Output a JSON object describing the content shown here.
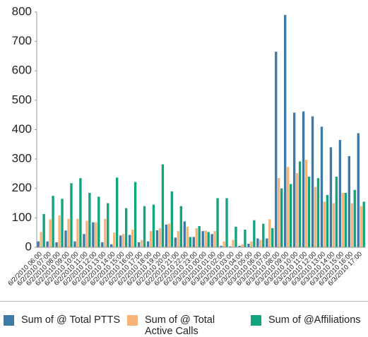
{
  "chart_data": {
    "type": "bar",
    "categories": [
      "6/2/2010 06:00",
      "6/2/2010 07:00",
      "6/2/2010 08:00",
      "6/2/2010 09:00",
      "6/2/2010 10:00",
      "6/2/2010 11:00",
      "6/2/2010 12:00",
      "6/2/2010 13:00",
      "6/2/2010 14:00",
      "6/2/2010 15:00",
      "6/2/2010 16:00",
      "6/2/2010 17:00",
      "6/2/2010 18:00",
      "6/2/2010 19:00",
      "6/2/2010 20:00",
      "6/2/2010 21:00",
      "6/2/2010 22:00",
      "6/2/2010 23:00",
      "6/3/2010 00:00",
      "6/3/2010 01:00",
      "6/3/2010 02:00",
      "6/3/2010 03:00",
      "6/3/2010 04:00",
      "6/3/2010 05:00",
      "6/3/2010 06:00",
      "6/3/2010 07:00",
      "6/3/2010 08:00",
      "6/3/2010 09:00",
      "6/3/2010 10:00",
      "6/3/2010 11:00",
      "6/3/2010 12:00",
      "6/3/2010 13:00",
      "6/3/2010 14:00",
      "6/3/2010 15:00",
      "6/3/2010 16:00",
      "6/3/2010 17:00"
    ],
    "series": [
      {
        "name": "Sum of @ Total PTTS",
        "color": "#3d7aa8",
        "values": [
          20,
          20,
          17,
          57,
          20,
          45,
          85,
          17,
          10,
          40,
          42,
          17,
          20,
          58,
          77,
          33,
          88,
          35,
          55,
          45,
          5,
          3,
          5,
          12,
          30,
          30,
          665,
          790,
          458,
          462,
          445,
          410,
          340,
          365,
          310,
          388
        ]
      },
      {
        "name": "Sum of @ Total Active Calls",
        "color": "#f5b57a",
        "values": [
          52,
          95,
          108,
          97,
          97,
          90,
          85,
          97,
          50,
          45,
          60,
          25,
          55,
          65,
          80,
          55,
          70,
          65,
          57,
          55,
          20,
          25,
          10,
          20,
          25,
          95,
          235,
          273,
          252,
          298,
          205,
          155,
          150,
          185,
          150,
          140
        ]
      },
      {
        "name": "Sum of @Affiliations",
        "color": "#12a37f",
        "values": [
          113,
          175,
          165,
          218,
          235,
          185,
          172,
          150,
          237,
          133,
          222,
          140,
          145,
          282,
          190,
          140,
          35,
          72,
          52,
          167,
          167,
          70,
          60,
          92,
          80,
          65,
          200,
          215,
          292,
          240,
          235,
          178,
          240,
          185,
          195,
          155
        ]
      }
    ],
    "ylim": [
      0,
      800
    ],
    "yticks": [
      0,
      100,
      200,
      300,
      400,
      500,
      600,
      700,
      800
    ]
  }
}
